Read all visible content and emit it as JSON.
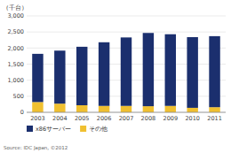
{
  "chart_data": {
    "type": "bar",
    "stacked": true,
    "ylabel": "（千台）",
    "source": "Source: IDC Japan, ©2012",
    "categories": [
      "2003",
      "2004",
      "2005",
      "2006",
      "2007",
      "2008",
      "2009",
      "2010",
      "2011"
    ],
    "series": [
      {
        "name": "その他",
        "color": "#f0c030",
        "values": [
          320,
          270,
          220,
          200,
          200,
          190,
          200,
          140,
          160
        ]
      },
      {
        "name": "x86サーバー",
        "color": "#1b2f6e",
        "values": [
          1500,
          1650,
          1820,
          1980,
          2130,
          2280,
          2230,
          2200,
          2210
        ]
      }
    ],
    "ylim": [
      0,
      3000
    ],
    "yticks": [
      0,
      500,
      {
        "value": 1000,
        "label": "1,000"
      },
      {
        "value": 1500,
        "label": "1,500"
      },
      {
        "value": 2000,
        "label": "2,000"
      },
      {
        "value": 2500,
        "label": "2,500"
      },
      {
        "value": 3000,
        "label": "3,000"
      }
    ],
    "grid": true,
    "legend": "bottom"
  }
}
